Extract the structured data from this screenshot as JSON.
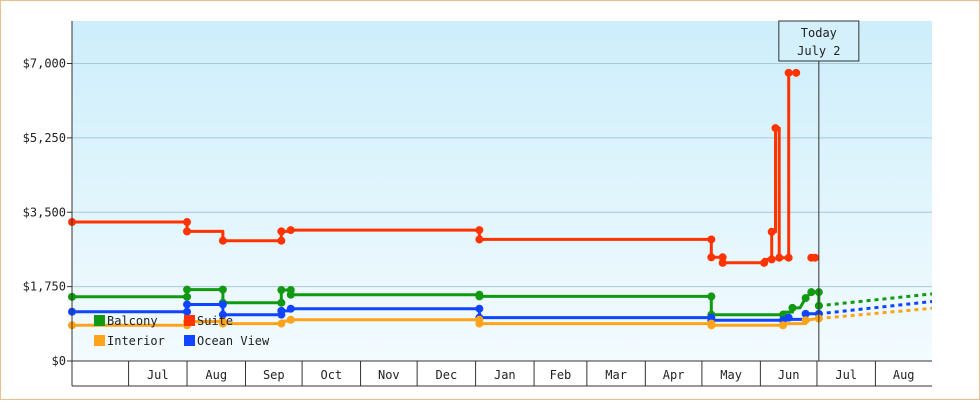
{
  "chart_data": {
    "type": "line",
    "ylim": [
      0,
      8000
    ],
    "y_ticks": [
      {
        "value": 0,
        "label": "$0"
      },
      {
        "value": 1750,
        "label": "$1,750"
      },
      {
        "value": 3500,
        "label": "$3,500"
      },
      {
        "value": 5250,
        "label": "$5,250"
      },
      {
        "value": 7000,
        "label": "$7,000"
      }
    ],
    "x_domain": [
      "2022-06-01",
      "2023-08-31"
    ],
    "x_month_bounds": [
      "2022-06-01",
      "2022-07-01",
      "2022-08-01",
      "2022-09-01",
      "2022-10-01",
      "2022-11-01",
      "2022-12-01",
      "2023-01-01",
      "2023-02-01",
      "2023-03-01",
      "2023-04-01",
      "2023-05-01",
      "2023-06-01",
      "2023-07-01",
      "2023-08-01",
      "2023-09-01"
    ],
    "x_tick_labels": [
      {
        "date": "2022-07-01",
        "label": "Jul"
      },
      {
        "date": "2022-08-01",
        "label": "Aug"
      },
      {
        "date": "2022-09-01",
        "label": "Sep"
      },
      {
        "date": "2022-10-01",
        "label": "Oct"
      },
      {
        "date": "2022-11-01",
        "label": "Nov"
      },
      {
        "date": "2022-12-01",
        "label": "Dec"
      },
      {
        "date": "2023-01-01",
        "label": "Jan"
      },
      {
        "date": "2023-02-01",
        "label": "Feb"
      },
      {
        "date": "2023-03-01",
        "label": "Mar"
      },
      {
        "date": "2023-04-01",
        "label": "Apr"
      },
      {
        "date": "2023-05-01",
        "label": "May"
      },
      {
        "date": "2023-06-01",
        "label": "Jun"
      },
      {
        "date": "2023-07-01",
        "label": "Jul"
      },
      {
        "date": "2023-08-01",
        "label": "Aug"
      }
    ],
    "today": {
      "date": "2023-07-02",
      "line1": "Today",
      "line2": "July 2"
    },
    "legend_position": "bottom-left",
    "series": [
      {
        "name": "Suite",
        "color": "#ff3300",
        "points": [
          [
            "2022-06-01",
            3270
          ],
          [
            "2022-08-01",
            3270
          ],
          [
            "2022-08-01",
            3050
          ],
          [
            "2022-08-20",
            3050
          ],
          [
            "2022-08-20",
            2830
          ],
          [
            "2022-09-20",
            2830
          ],
          [
            "2022-09-20",
            3050
          ],
          [
            "2022-09-25",
            3050
          ],
          [
            "2022-09-25",
            3080
          ],
          [
            "2023-01-03",
            3080
          ],
          [
            "2023-01-03",
            2860
          ],
          [
            "2023-05-06",
            2860
          ],
          [
            "2023-05-06",
            2440
          ],
          [
            "2023-05-12",
            2440
          ],
          [
            "2023-05-12",
            2310
          ],
          [
            "2023-06-03",
            2310
          ],
          [
            "2023-06-03",
            2390
          ],
          [
            "2023-06-07",
            2390
          ],
          [
            "2023-06-07",
            3040
          ],
          [
            "2023-06-09",
            3040
          ],
          [
            "2023-06-09",
            5480
          ],
          [
            "2023-06-11",
            5480
          ],
          [
            "2023-06-11",
            2430
          ],
          [
            "2023-06-16",
            2430
          ],
          [
            "2023-06-16",
            6780
          ],
          [
            "2023-06-20",
            6780
          ]
        ],
        "extra_points": [
          [
            "2023-06-28",
            2430
          ],
          [
            "2023-06-30",
            2430
          ]
        ],
        "markers": [
          [
            "2022-06-01",
            3270
          ],
          [
            "2022-08-01",
            3270
          ],
          [
            "2022-08-01",
            3050
          ],
          [
            "2022-08-20",
            2830
          ],
          [
            "2022-09-20",
            2830
          ],
          [
            "2022-09-20",
            3050
          ],
          [
            "2022-09-25",
            3080
          ],
          [
            "2023-01-03",
            3080
          ],
          [
            "2023-01-03",
            2860
          ],
          [
            "2023-05-06",
            2860
          ],
          [
            "2023-05-06",
            2440
          ],
          [
            "2023-05-12",
            2440
          ],
          [
            "2023-05-12",
            2310
          ],
          [
            "2023-06-03",
            2310
          ],
          [
            "2023-06-07",
            2390
          ],
          [
            "2023-06-07",
            3040
          ],
          [
            "2023-06-09",
            5480
          ],
          [
            "2023-06-11",
            2430
          ],
          [
            "2023-06-16",
            2430
          ],
          [
            "2023-06-16",
            6780
          ],
          [
            "2023-06-20",
            6780
          ],
          [
            "2023-06-28",
            2430
          ],
          [
            "2023-06-30",
            2430
          ]
        ]
      },
      {
        "name": "Balcony",
        "color": "#119911",
        "points": [
          [
            "2022-06-01",
            1510
          ],
          [
            "2022-08-01",
            1510
          ],
          [
            "2022-08-01",
            1680
          ],
          [
            "2022-08-20",
            1680
          ],
          [
            "2022-08-20",
            1370
          ],
          [
            "2022-09-20",
            1370
          ],
          [
            "2022-09-20",
            1670
          ],
          [
            "2022-09-25",
            1670
          ],
          [
            "2022-09-25",
            1560
          ],
          [
            "2023-01-03",
            1560
          ],
          [
            "2023-01-03",
            1520
          ],
          [
            "2023-05-06",
            1520
          ],
          [
            "2023-05-06",
            1090
          ],
          [
            "2023-06-13",
            1090
          ],
          [
            "2023-06-13",
            1150
          ],
          [
            "2023-06-18",
            1150
          ],
          [
            "2023-06-18",
            1250
          ],
          [
            "2023-06-22",
            1250
          ],
          [
            "2023-06-25",
            1480
          ],
          [
            "2023-06-28",
            1620
          ],
          [
            "2023-07-02",
            1620
          ],
          [
            "2023-07-02",
            1300
          ]
        ],
        "markers": [
          [
            "2022-06-01",
            1510
          ],
          [
            "2022-08-01",
            1510
          ],
          [
            "2022-08-01",
            1680
          ],
          [
            "2022-08-20",
            1680
          ],
          [
            "2022-08-20",
            1370
          ],
          [
            "2022-09-20",
            1370
          ],
          [
            "2022-09-20",
            1670
          ],
          [
            "2022-09-25",
            1670
          ],
          [
            "2022-09-25",
            1560
          ],
          [
            "2023-01-03",
            1560
          ],
          [
            "2023-01-03",
            1520
          ],
          [
            "2023-05-06",
            1520
          ],
          [
            "2023-05-06",
            1090
          ],
          [
            "2023-06-13",
            1090
          ],
          [
            "2023-06-18",
            1250
          ],
          [
            "2023-06-25",
            1480
          ],
          [
            "2023-06-28",
            1620
          ],
          [
            "2023-07-02",
            1620
          ],
          [
            "2023-07-02",
            1300
          ]
        ],
        "forecast": [
          [
            "2023-07-02",
            1300
          ],
          [
            "2023-08-31",
            1580
          ]
        ]
      },
      {
        "name": "Ocean View",
        "color": "#1144ff",
        "points": [
          [
            "2022-06-01",
            1160
          ],
          [
            "2022-08-01",
            1160
          ],
          [
            "2022-08-01",
            1330
          ],
          [
            "2022-08-20",
            1330
          ],
          [
            "2022-08-20",
            1090
          ],
          [
            "2022-09-20",
            1090
          ],
          [
            "2022-09-20",
            1180
          ],
          [
            "2022-09-25",
            1180
          ],
          [
            "2022-09-25",
            1230
          ],
          [
            "2023-01-03",
            1230
          ],
          [
            "2023-01-03",
            1020
          ],
          [
            "2023-05-06",
            1020
          ],
          [
            "2023-05-06",
            960
          ],
          [
            "2023-06-13",
            960
          ],
          [
            "2023-06-13",
            980
          ],
          [
            "2023-06-25",
            980
          ],
          [
            "2023-06-25",
            1110
          ],
          [
            "2023-07-02",
            1110
          ]
        ],
        "markers": [
          [
            "2022-06-01",
            1160
          ],
          [
            "2022-08-01",
            1160
          ],
          [
            "2022-08-01",
            1330
          ],
          [
            "2022-08-20",
            1330
          ],
          [
            "2022-08-20",
            1090
          ],
          [
            "2022-09-20",
            1090
          ],
          [
            "2022-09-20",
            1180
          ],
          [
            "2022-09-25",
            1230
          ],
          [
            "2023-01-03",
            1230
          ],
          [
            "2023-01-03",
            1020
          ],
          [
            "2023-05-06",
            1020
          ],
          [
            "2023-05-06",
            960
          ],
          [
            "2023-06-13",
            960
          ],
          [
            "2023-06-16",
            1020
          ],
          [
            "2023-06-25",
            1110
          ],
          [
            "2023-07-02",
            1110
          ]
        ],
        "forecast": [
          [
            "2023-07-02",
            1110
          ],
          [
            "2023-08-31",
            1400
          ]
        ]
      },
      {
        "name": "Interior",
        "color": "#ffa31a",
        "points": [
          [
            "2022-06-01",
            840
          ],
          [
            "2022-08-01",
            840
          ],
          [
            "2022-08-01",
            930
          ],
          [
            "2022-08-20",
            930
          ],
          [
            "2022-08-20",
            880
          ],
          [
            "2022-09-20",
            880
          ],
          [
            "2022-09-20",
            940
          ],
          [
            "2022-09-25",
            940
          ],
          [
            "2022-09-25",
            970
          ],
          [
            "2023-01-03",
            970
          ],
          [
            "2023-01-03",
            880
          ],
          [
            "2023-05-06",
            880
          ],
          [
            "2023-05-06",
            840
          ],
          [
            "2023-06-13",
            840
          ],
          [
            "2023-06-13",
            880
          ],
          [
            "2023-06-25",
            880
          ],
          [
            "2023-06-25",
            960
          ],
          [
            "2023-07-02",
            1000
          ]
        ],
        "markers": [
          [
            "2022-06-01",
            840
          ],
          [
            "2022-08-01",
            840
          ],
          [
            "2022-08-01",
            930
          ],
          [
            "2022-08-20",
            930
          ],
          [
            "2022-08-20",
            880
          ],
          [
            "2022-09-20",
            880
          ],
          [
            "2022-09-25",
            970
          ],
          [
            "2023-01-03",
            970
          ],
          [
            "2023-01-03",
            880
          ],
          [
            "2023-05-06",
            880
          ],
          [
            "2023-05-06",
            840
          ],
          [
            "2023-06-13",
            840
          ],
          [
            "2023-06-25",
            960
          ],
          [
            "2023-07-02",
            1000
          ]
        ],
        "forecast": [
          [
            "2023-07-02",
            1000
          ],
          [
            "2023-08-31",
            1240
          ]
        ]
      }
    ],
    "legend": [
      {
        "name": "Balcony",
        "color": "#119911"
      },
      {
        "name": "Suite",
        "color": "#ff3300"
      },
      {
        "name": "Interior",
        "color": "#ffa31a"
      },
      {
        "name": "Ocean View",
        "color": "#1144ff"
      }
    ]
  }
}
